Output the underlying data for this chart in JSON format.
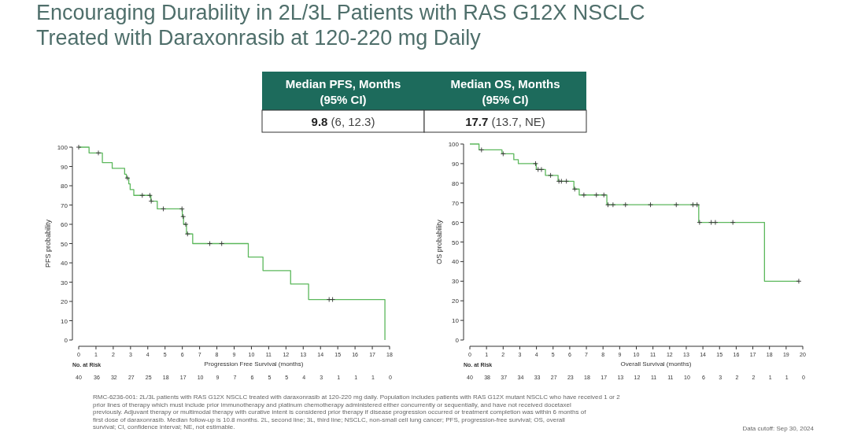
{
  "chart_data": [
    {
      "type": "step",
      "title": "Encouraging Durability in 2L/3L Patients with RAS G12X NSCLC Treated with Daraxonrasib at 120-220 mg Daily",
      "xlabel": "Progression Free Survival (months)",
      "ylabel": "PFS probability",
      "xlim": [
        0,
        18
      ],
      "xticks": [
        0,
        1,
        2,
        3,
        4,
        5,
        6,
        7,
        8,
        9,
        10,
        11,
        12,
        13,
        14,
        15,
        16,
        17,
        18
      ],
      "ylim": [
        0,
        100
      ],
      "yticks": [
        0,
        10,
        20,
        30,
        40,
        50,
        60,
        70,
        80,
        90,
        100
      ],
      "grid": false,
      "series": [
        {
          "color": "#5cb85c",
          "x": [
            0,
            0.6,
            1.37,
            1.94,
            2.66,
            2.76,
            2.9,
            2.98,
            3.19,
            4.18,
            4.55,
            6.0,
            6.07,
            6.24,
            6.6,
            9.82,
            10.67,
            12.27,
            13.31,
            17.73
          ],
          "values": [
            100,
            97,
            92,
            89,
            86,
            84,
            81,
            78,
            75,
            72,
            68,
            64,
            60,
            55,
            50,
            43,
            36,
            29,
            21,
            0
          ]
        },
        {
          "type": "scatter",
          "marker": "cross",
          "color": "#333333",
          "x": [
            0,
            1.14,
            2.82,
            3.68,
            4.12,
            4.2,
            4.9,
            5.98,
            6.05,
            6.2,
            6.3,
            7.59,
            8.28,
            14.5,
            14.7
          ],
          "values": [
            100,
            97,
            84,
            75,
            75,
            72,
            68,
            68,
            64,
            60,
            55,
            50,
            50,
            21,
            21
          ]
        }
      ],
      "annotations": [
        "Median PFS, Months (95% CI)",
        "9.8 (6, 12.3)",
        "RMC-6236-001: 2L/3L patients with RAS G12X NSCLC treated with daraxonrasib at 120-220 mg daily. Population includes patients with RAS G12X mutant NSCLC who have received 1 or 2 prior lines of therapy which must include prior immunotherapy and platinum chemotherapy administered either concurrently or sequentially, and have not received docetaxel previously. Adjuvant therapy or multimodal therapy with curative intent is considered prior therapy if disease progression occurred or treatment completion was within 6 months of first dose of daraxonrasib. Median follow-up is 10.8 months. 2L, second line; 3L, third line; NSCLC, non-small cell lung cancer; PFS, progression-free survival; OS, overall survival; CI, confidence interval; NE, not estimable.",
        "Data cutoff: Sep 30, 2024",
        "No. at Risk",
        "40 36 32 27 25 18 17 10 9 7 6 5 5 4 3 1 1 1 0"
      ]
    },
    {
      "type": "step",
      "xlabel": "Overall Survival (months)",
      "ylabel": "OS probability",
      "xlim": [
        0,
        20
      ],
      "xticks": [
        0,
        1,
        2,
        3,
        4,
        5,
        6,
        7,
        8,
        9,
        10,
        11,
        12,
        13,
        14,
        15,
        16,
        17,
        18,
        19,
        20
      ],
      "ylim": [
        0,
        100
      ],
      "yticks": [
        0,
        10,
        20,
        30,
        40,
        50,
        60,
        70,
        80,
        90,
        100
      ],
      "grid": false,
      "series": [
        {
          "color": "#5cb85c",
          "x": [
            0,
            0.55,
            1.93,
            2.64,
            2.91,
            3.99,
            4.54,
            5.3,
            6.25,
            6.57,
            8.23,
            13.75,
            17.7,
            19.76
          ],
          "values": [
            100,
            97,
            95,
            92,
            90,
            87,
            84,
            81,
            77,
            74,
            69,
            60,
            30,
            30
          ]
        },
        {
          "type": "scatter",
          "marker": "cross",
          "color": "#333333",
          "x": [
            0.7,
            2.0,
            3.95,
            4.1,
            4.3,
            4.85,
            5.35,
            5.5,
            5.8,
            6.3,
            6.85,
            7.6,
            8.05,
            8.3,
            8.6,
            9.35,
            10.85,
            12.4,
            13.4,
            13.65,
            13.8,
            14.5,
            14.75,
            15.8,
            19.76
          ],
          "values": [
            97,
            95,
            90,
            87,
            87,
            84,
            81,
            81,
            81,
            77,
            74,
            74,
            74,
            69,
            69,
            69,
            69,
            69,
            69,
            69,
            60,
            60,
            60,
            60,
            30
          ]
        }
      ],
      "annotations": [
        "Median OS, Months (95% CI)",
        "17.7 (13.7, NE)",
        "No. at Risk",
        "40 38 37 34 33 27 23 18 17 13 12 11 11 10 6 3 2 2 1 1 0"
      ]
    }
  ]
}
